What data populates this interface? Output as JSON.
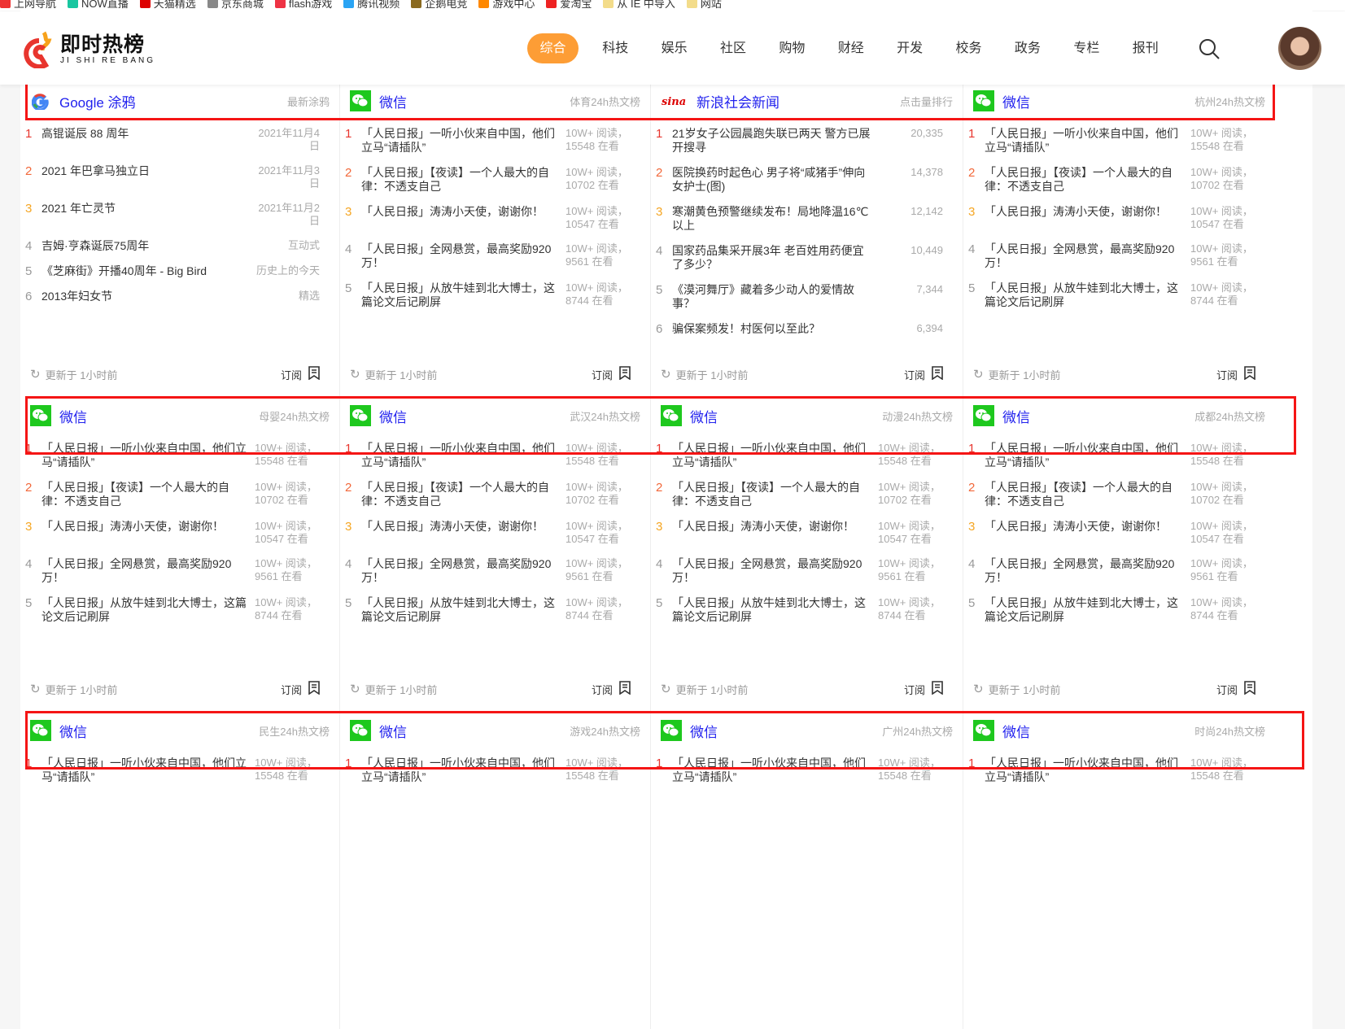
{
  "bookmarks": [
    {
      "label": "上网导航",
      "color": "#e33"
    },
    {
      "label": "NOW直播",
      "color": "#19c6a0"
    },
    {
      "label": "天猫精选",
      "color": "#d00"
    },
    {
      "label": "京东商城",
      "color": "#888"
    },
    {
      "label": "flash游戏",
      "color": "#e34"
    },
    {
      "label": "腾讯视频",
      "color": "#2aa4f4"
    },
    {
      "label": "企鹅电竞",
      "color": "#8a6a20"
    },
    {
      "label": "游戏中心",
      "color": "#f80"
    },
    {
      "label": "爱淘宝",
      "color": "#e22"
    },
    {
      "label": "从 IE 中导入",
      "color": "#f3dc8a"
    },
    {
      "label": "网站",
      "color": "#f3dc8a"
    }
  ],
  "header": {
    "logo_cn": "即时热榜",
    "logo_en": "JI SHI RE BANG",
    "nav": [
      "综合",
      "科技",
      "娱乐",
      "社区",
      "购物",
      "财经",
      "开发",
      "校务",
      "政务",
      "专栏",
      "报刊"
    ],
    "active": "综合",
    "accent": "#fd9d35"
  },
  "footer_text": {
    "updated": "更新于 1小时前",
    "subscribe": "订阅"
  },
  "cards": [
    {
      "source": "google",
      "title": "Google 涂鸦",
      "sub": "最新涂鸦",
      "items": [
        {
          "t": "高锟诞辰 88 周年",
          "m": "2021年11月4日"
        },
        {
          "t": "2021 年巴拿马独立日",
          "m": "2021年11月3日"
        },
        {
          "t": "2021 年亡灵节",
          "m": "2021年11月2日"
        },
        {
          "t": "吉姆·亨森诞辰75周年",
          "m": "互动式"
        },
        {
          "t": "《芝麻街》开播40周年 - Big Bird",
          "m": "历史上的今天"
        },
        {
          "t": "2013年妇女节",
          "m": "精选"
        }
      ]
    },
    {
      "source": "wechat",
      "title": "微信",
      "sub": "体育24h热文榜",
      "items": "wx"
    },
    {
      "source": "sina",
      "title": "新浪社会新闻",
      "sub": "点击量排行",
      "items": [
        {
          "t": "21岁女子公园晨跑失联已两天 警方已展开搜寻",
          "m": "20,335"
        },
        {
          "t": "医院换药时起色心 男子将“咸猪手”伸向女护士(图)",
          "m": "14,378"
        },
        {
          "t": "寒潮黄色预警继续发布！局地降温16℃以上",
          "m": "12,142"
        },
        {
          "t": "国家药品集采开展3年 老百姓用药便宜了多少？",
          "m": "10,449"
        },
        {
          "t": "《漠河舞厅》藏着多少动人的爱情故事？",
          "m": "7,344"
        },
        {
          "t": "骗保案频发！村医何以至此？",
          "m": "6,394"
        }
      ]
    },
    {
      "source": "wechat",
      "title": "微信",
      "sub": "杭州24h热文榜",
      "items": "wx"
    },
    {
      "source": "wechat",
      "title": "微信",
      "sub": "母婴24h热文榜",
      "items": "wx"
    },
    {
      "source": "wechat",
      "title": "微信",
      "sub": "武汉24h热文榜",
      "items": "wx"
    },
    {
      "source": "wechat",
      "title": "微信",
      "sub": "动漫24h热文榜",
      "items": "wx"
    },
    {
      "source": "wechat",
      "title": "微信",
      "sub": "成都24h热文榜",
      "items": "wx"
    },
    {
      "source": "wechat",
      "title": "微信",
      "sub": "民生24h热文榜",
      "items": "wx1"
    },
    {
      "source": "wechat",
      "title": "微信",
      "sub": "游戏24h热文榜",
      "items": "wx1"
    },
    {
      "source": "wechat",
      "title": "微信",
      "sub": "广州24h热文榜",
      "items": "wx1"
    },
    {
      "source": "wechat",
      "title": "微信",
      "sub": "时尚24h热文榜",
      "items": "wx1"
    }
  ],
  "wechat_items": [
    {
      "t": "「人民日报」一听小伙来自中国，他们立马“请插队”",
      "m": "10W+ 阅读，15548 在看"
    },
    {
      "t": "「人民日报」【夜读】一个人最大的自律：不透支自己",
      "m": "10W+ 阅读，10702 在看"
    },
    {
      "t": "「人民日报」涛涛小天使，谢谢你！",
      "m": "10W+ 阅读，10547 在看"
    },
    {
      "t": "「人民日报」全网悬赏，最高奖励920万！",
      "m": "10W+ 阅读，9561 在看"
    },
    {
      "t": "「人民日报」从放牛娃到北大博士，这篇论文后记刷屏",
      "m": "10W+ 阅读，8744 在看"
    }
  ],
  "rank_colors": [
    "#e8352e",
    "#f2683a",
    "#f5a623",
    "#999999"
  ]
}
